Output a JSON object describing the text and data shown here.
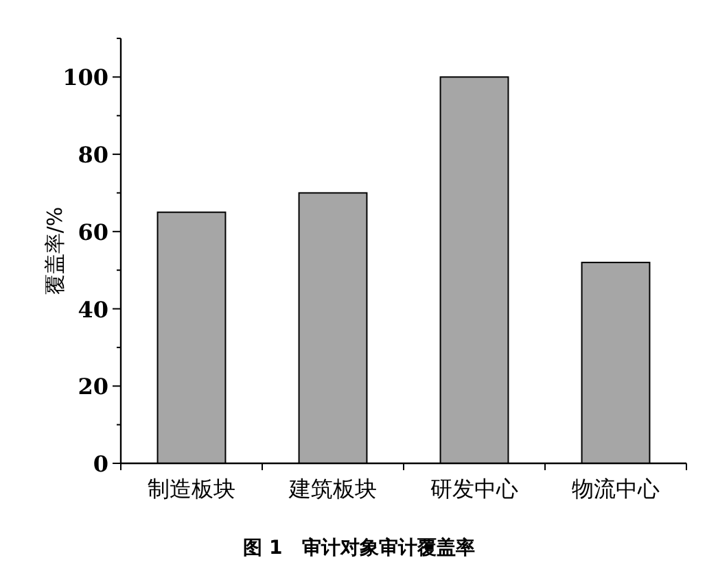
{
  "chart_data": {
    "type": "bar",
    "ylabel": "覆盖率/%",
    "categories": [
      "制造板块",
      "建筑板块",
      "研发中心",
      "物流中心"
    ],
    "values": [
      65,
      70,
      100,
      52
    ],
    "color": "#a6a6a6",
    "ylim": [
      0,
      110
    ],
    "yticks": [
      0,
      {
        "value": 10,
        "label": null
      },
      20,
      {
        "value": 30,
        "label": null
      },
      40,
      {
        "value": 50,
        "label": null
      },
      60,
      {
        "value": 70,
        "label": null
      },
      80,
      {
        "value": 90,
        "label": null
      },
      100,
      {
        "value": 110,
        "label": null
      }
    ],
    "annotations": [
      "图 1　审计对象审计覆盖率"
    ]
  }
}
